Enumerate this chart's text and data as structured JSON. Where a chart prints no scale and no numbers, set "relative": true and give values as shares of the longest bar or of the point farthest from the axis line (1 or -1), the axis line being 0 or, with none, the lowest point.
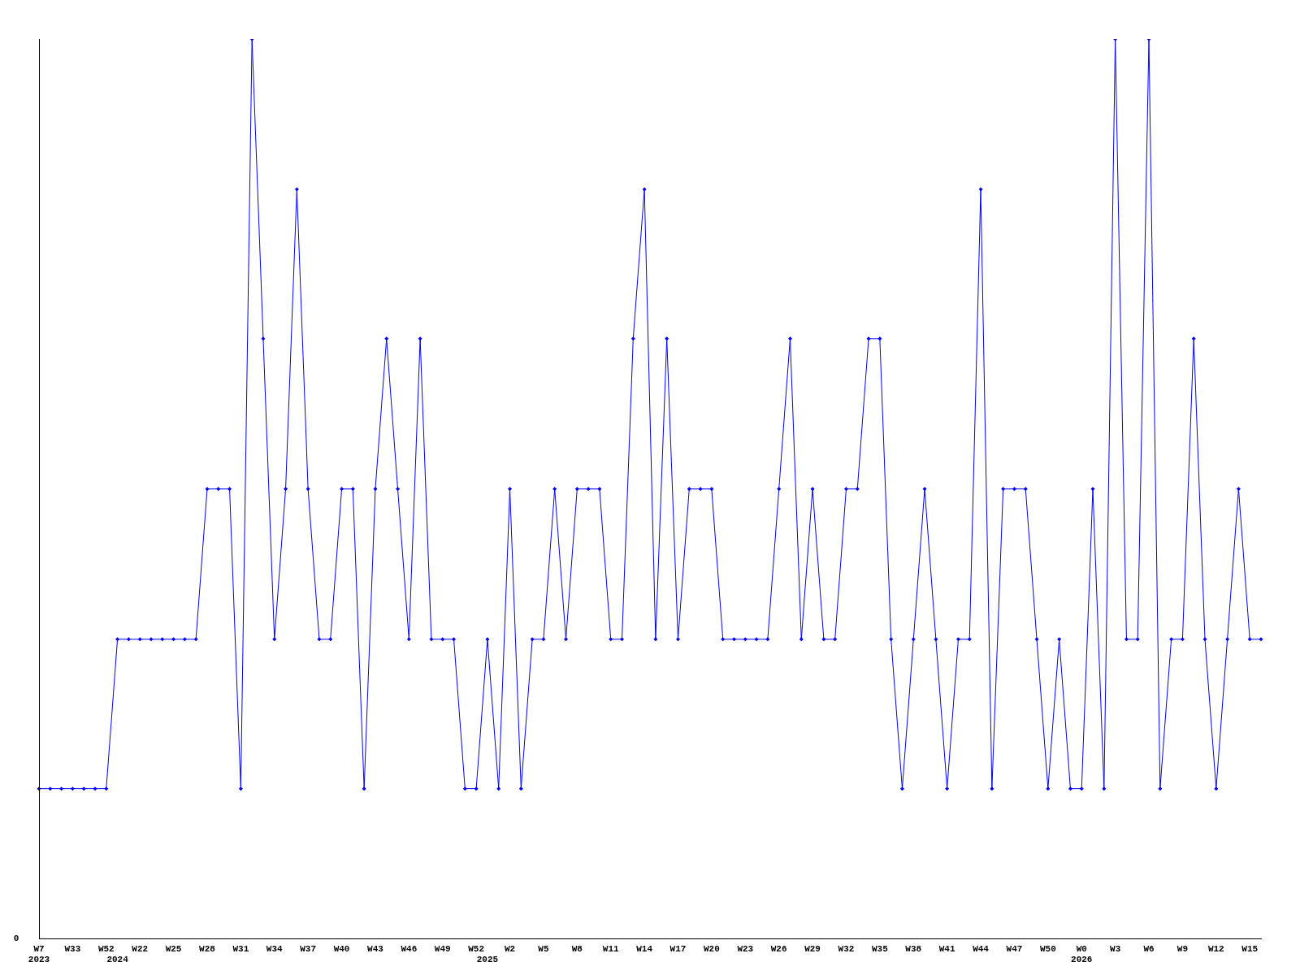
{
  "chart_data": {
    "type": "line",
    "relative": true,
    "legend": false,
    "grid": false,
    "marker": "diamond",
    "line_style": "solid",
    "categories": [
      "W7\n2023",
      null,
      null,
      "W33",
      null,
      null,
      "W52",
      "\n2024",
      null,
      "W22",
      null,
      null,
      "W25",
      null,
      null,
      "W28",
      null,
      null,
      "W31",
      null,
      null,
      "W34",
      null,
      null,
      "W37",
      null,
      null,
      "W40",
      null,
      null,
      "W43",
      null,
      null,
      "W46",
      null,
      null,
      "W49",
      null,
      null,
      "W52",
      "\n2025",
      null,
      "W2",
      null,
      null,
      "W5",
      null,
      null,
      "W8",
      null,
      null,
      "W11",
      null,
      null,
      "W14",
      null,
      null,
      "W17",
      null,
      null,
      "W20",
      null,
      null,
      "W23",
      null,
      null,
      "W26",
      null,
      null,
      "W29",
      null,
      null,
      "W32",
      null,
      null,
      "W35",
      null,
      null,
      "W38",
      null,
      null,
      "W41",
      null,
      null,
      "W44",
      null,
      null,
      "W47",
      null,
      null,
      "W50",
      null,
      null,
      "W0\n2026",
      null,
      null,
      "W3",
      null,
      null,
      "W6",
      null,
      null,
      "W9",
      null,
      null,
      "W12",
      null,
      null,
      "W15",
      null
    ],
    "series": [
      {
        "color": "#0000ff",
        "values": [
          0.167,
          0.167,
          0.167,
          0.167,
          0.167,
          0.167,
          0.167,
          0.333,
          0.333,
          0.333,
          0.333,
          0.333,
          0.333,
          0.333,
          0.333,
          0.5,
          0.5,
          0.5,
          0.167,
          1,
          0.667,
          0.333,
          0.5,
          0.833,
          0.5,
          0.333,
          0.333,
          0.5,
          0.5,
          0.167,
          0.5,
          0.667,
          0.5,
          0.333,
          0.667,
          0.333,
          0.333,
          0.333,
          0.167,
          0.167,
          0.333,
          0.167,
          0.5,
          0.167,
          0.333,
          0.333,
          0.5,
          0.333,
          0.5,
          0.5,
          0.5,
          0.333,
          0.333,
          0.667,
          0.833,
          0.333,
          0.667,
          0.333,
          0.5,
          0.5,
          0.5,
          0.333,
          0.333,
          0.333,
          0.333,
          0.333,
          0.5,
          0.667,
          0.333,
          0.5,
          0.333,
          0.333,
          0.5,
          0.5,
          0.667,
          0.667,
          0.333,
          0.167,
          0.333,
          0.5,
          0.333,
          0.167,
          0.333,
          0.333,
          0.833,
          0.167,
          0.5,
          0.5,
          0.5,
          0.333,
          0.167,
          0.333,
          0.167,
          0.167,
          0.5,
          0.167,
          1,
          0.333,
          0.333,
          1,
          0.167,
          0.333,
          0.333,
          0.667,
          0.333,
          0.167,
          0.333,
          0.5,
          0.333,
          0.333
        ]
      }
    ],
    "annotations": [
      "0"
    ]
  }
}
